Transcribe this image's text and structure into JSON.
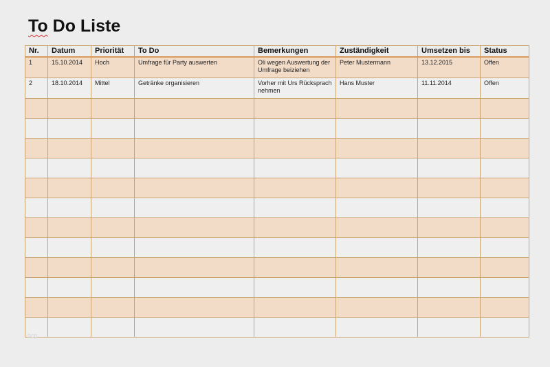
{
  "title_part1": "To",
  "title_part2": " Do Liste",
  "columns": [
    "Nr.",
    "Datum",
    "Priorität",
    "To Do",
    "Bemerkungen",
    "Zuständigkeit",
    "Umsetzen bis",
    "Status"
  ],
  "rows": [
    [
      "1",
      "15.10.2014",
      "Hoch",
      "Umfrage für Party auswerten",
      "Oli wegen Auswertung der Umfrage beiziehen",
      "Peter Mustermann",
      "13.12.2015",
      "Offen"
    ],
    [
      "2",
      "18.10.2014",
      "Mittel",
      "Getränke organisieren",
      "Vorher mit Urs Rücksprach nehmen",
      "Hans Muster",
      "11.11.2014",
      "Offen"
    ]
  ],
  "empty_rows": 12,
  "watermark": "hcp",
  "colors": {
    "row_accent": "#f2dcc8",
    "border": "#c9a36f"
  }
}
